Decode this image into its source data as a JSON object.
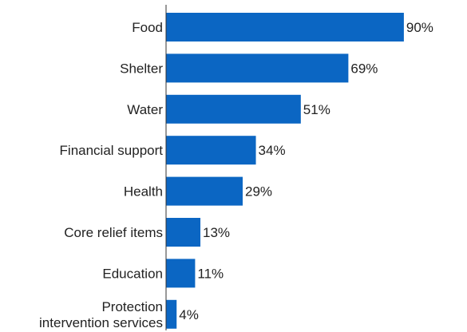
{
  "chart_data": {
    "type": "bar",
    "orientation": "horizontal",
    "categories": [
      "Food",
      "Shelter",
      "Water",
      "Financial support",
      "Health",
      "Core relief items",
      "Education",
      [
        "Protection",
        "intervention services"
      ]
    ],
    "values": [
      90,
      69,
      51,
      34,
      29,
      13,
      11,
      4
    ],
    "value_labels": [
      "90%",
      "69%",
      "51%",
      "34%",
      "29%",
      "13%",
      "11%",
      "4%"
    ],
    "xlim": [
      0,
      100
    ],
    "bar_color": "#0b66c3",
    "axis_color": "#333333",
    "grid": false,
    "legend": "none"
  }
}
